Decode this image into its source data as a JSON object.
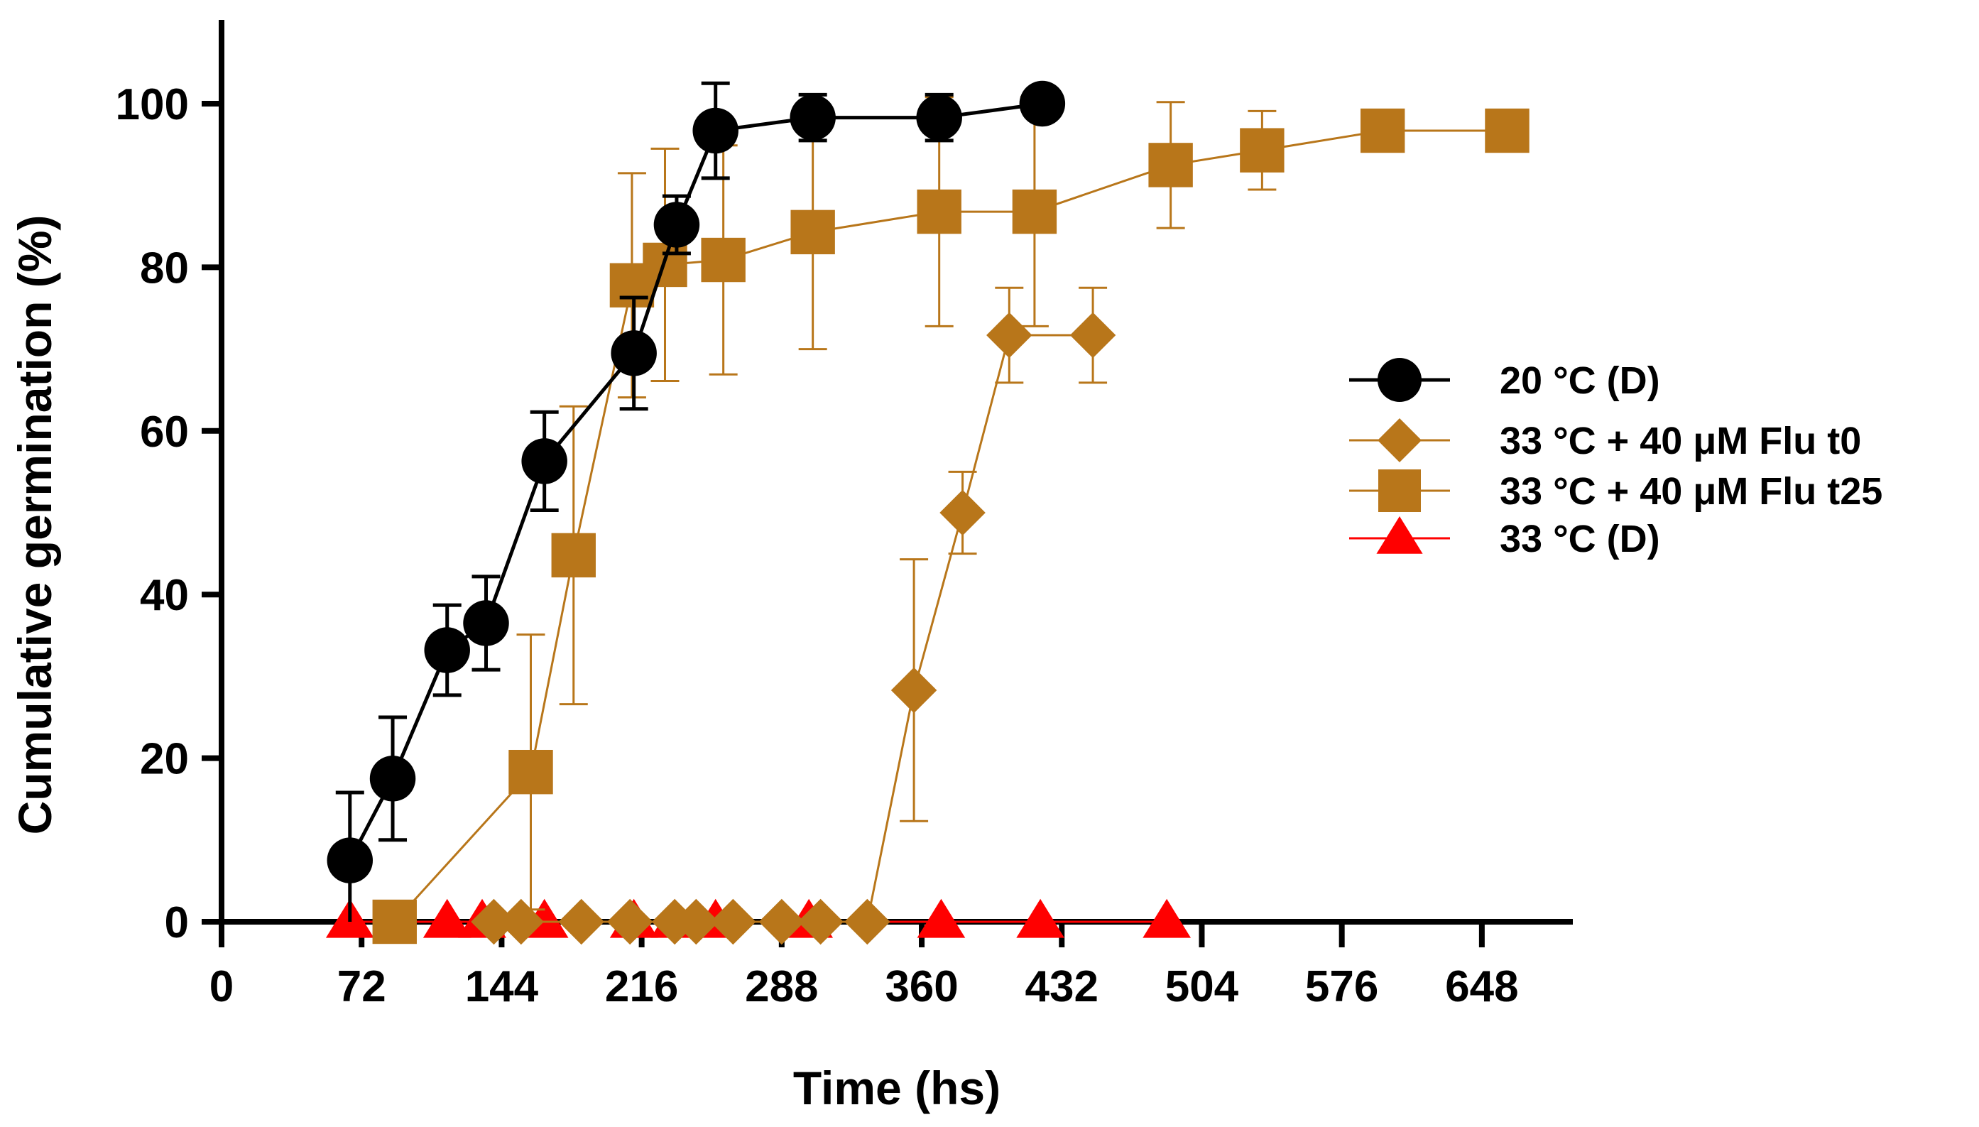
{
  "chart_data": {
    "type": "line",
    "title": "",
    "xlabel": "Time (hs)",
    "ylabel": "Cumulative germination (%)",
    "xlim": [
      0,
      688
    ],
    "ylim": [
      0,
      110
    ],
    "xticks": [
      0,
      72,
      144,
      216,
      288,
      360,
      432,
      504,
      576,
      648
    ],
    "xtick_labels": [
      "0",
      "72",
      "144",
      "216",
      "288",
      "360",
      "432",
      "504",
      "576",
      "648"
    ],
    "yticks": [
      0,
      20,
      40,
      60,
      80,
      100
    ],
    "ytick_labels": [
      "0",
      "20",
      "40",
      "60",
      "80",
      "100"
    ],
    "grid": false,
    "legend_position": "right",
    "series": [
      {
        "name": "20 °C (D)",
        "color": "#000000",
        "marker": "circle",
        "x": [
          66,
          88,
          116,
          136,
          166,
          212,
          234,
          254,
          304,
          369,
          422
        ],
        "y": [
          7.5,
          17.5,
          33.2,
          36.5,
          56.3,
          69.5,
          85.2,
          96.7,
          98.3,
          98.3,
          100
        ],
        "err": [
          8.3,
          7.5,
          5.5,
          5.7,
          6.0,
          6.8,
          3.5,
          5.8,
          2.8,
          2.8,
          0
        ]
      },
      {
        "name": "33 °C + 40 μM Flu t0",
        "color": "#B8761A",
        "marker": "diamond",
        "x": [
          140,
          154,
          185,
          210,
          233,
          244,
          263,
          288,
          308,
          332,
          356,
          381,
          405,
          448
        ],
        "y": [
          0,
          0,
          0,
          0,
          0,
          0,
          0,
          0,
          0,
          0,
          28.3,
          50,
          71.7,
          71.7
        ],
        "err": [
          0,
          0,
          0,
          0,
          0,
          0,
          0,
          0,
          0,
          0,
          16,
          5,
          5.8,
          5.8
        ]
      },
      {
        "name": "33 °C + 40 μM Flu t25",
        "color": "#B8761A",
        "marker": "square",
        "x": [
          89,
          159,
          181,
          211,
          228,
          258,
          304,
          369,
          418,
          488,
          535,
          597,
          661
        ],
        "y": [
          0,
          18.3,
          44.8,
          77.8,
          80.3,
          80.9,
          84.3,
          86.8,
          86.8,
          92.5,
          94.3,
          96.7,
          96.7
        ],
        "err": [
          0,
          16.8,
          18.2,
          13.7,
          14.2,
          14.0,
          14.3,
          14.0,
          14.0,
          7.7,
          4.8,
          2.0,
          2.0
        ]
      },
      {
        "name": "33 °C (D)",
        "color": "#FF0000",
        "marker": "triangle",
        "x": [
          66,
          116,
          134,
          166,
          212,
          233,
          254,
          302,
          370,
          421,
          486
        ],
        "y": [
          0,
          0,
          0,
          0,
          0,
          0,
          0,
          0,
          0,
          0,
          0
        ],
        "err": [
          0,
          0,
          0,
          0,
          0,
          0,
          0,
          0,
          0,
          0,
          0
        ]
      }
    ]
  }
}
